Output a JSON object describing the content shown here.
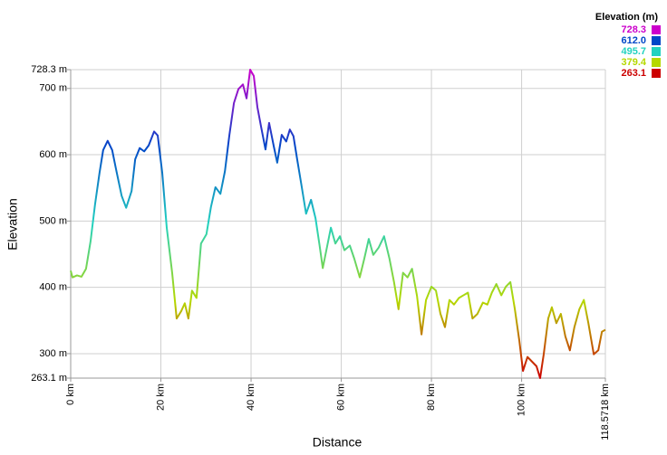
{
  "chart_data": {
    "type": "line",
    "x_label": "Distance",
    "y_label": "Elevation",
    "x": [
      0,
      0.4,
      1.4,
      2.4,
      3.4,
      4.4,
      5.4,
      6.4,
      7.2,
      8.2,
      9.2,
      10,
      11.3,
      12.3,
      13.5,
      14.3,
      15.3,
      16.3,
      17.3,
      18.5,
      19.3,
      20.3,
      21.3,
      22.5,
      23.5,
      24.5,
      25.3,
      26.1,
      26.9,
      27.9,
      28.9,
      30.1,
      31.1,
      32.1,
      33.2,
      34.2,
      35.2,
      36.2,
      37.2,
      38.2,
      39,
      39.8,
      40.6,
      41.4,
      42.2,
      43.2,
      44,
      45,
      45.8,
      46.8,
      47.8,
      48.6,
      49.4,
      50.2,
      51.2,
      52.2,
      53.3,
      54.3,
      55.2,
      55.9,
      56.7,
      57.7,
      58.7,
      59.7,
      60.7,
      61.9,
      62.9,
      64.1,
      65.1,
      66.1,
      67.1,
      68.3,
      69.5,
      70.7,
      71.7,
      72.7,
      73.7,
      74.7,
      75.7,
      76.8,
      77.8,
      78.8,
      80,
      81,
      82,
      83,
      84,
      85,
      86.1,
      87.1,
      88.1,
      89.1,
      90.2,
      91.4,
      92.4,
      93.4,
      94.4,
      95.5,
      96.5,
      97.5,
      98.5,
      99.5,
      100.3,
      101.3,
      102.3,
      103.3,
      104.1,
      104.9,
      105.9,
      106.7,
      107.7,
      108.7,
      109.7,
      110.7,
      111.7,
      112.8,
      113.8,
      114.8,
      116,
      117,
      117.8,
      118.5718
    ],
    "values": [
      425,
      415,
      418,
      416,
      428,
      469,
      525,
      573,
      607,
      621,
      607,
      580,
      538,
      520,
      545,
      593,
      610,
      605,
      614,
      635,
      629,
      573,
      490,
      422,
      353,
      364,
      376,
      353,
      395,
      384,
      466,
      480,
      521,
      551,
      541,
      575,
      630,
      678,
      699,
      706,
      685,
      728.3,
      719,
      672,
      643,
      608,
      648,
      614,
      588,
      630,
      620,
      638,
      628,
      594,
      553,
      511,
      532,
      504,
      463,
      429,
      456,
      490,
      466,
      477,
      456,
      463,
      443,
      415,
      443,
      473,
      449,
      460,
      477,
      443,
      408,
      367,
      422,
      415,
      428,
      387,
      329,
      381,
      401,
      395,
      360,
      340,
      381,
      374,
      384,
      388,
      392,
      353,
      360,
      377,
      374,
      392,
      405,
      388,
      401,
      408,
      367,
      319,
      274,
      295,
      288,
      281,
      263.1,
      299,
      353,
      370,
      346,
      360,
      326,
      305,
      340,
      367,
      381,
      346,
      299,
      305,
      333,
      336
    ],
    "xlim": [
      0,
      118.5718
    ],
    "ylim": [
      263.1,
      728.3
    ],
    "xticks": [
      {
        "value": 0,
        "label": "0 km"
      },
      {
        "value": 20,
        "label": "20 km"
      },
      {
        "value": 40,
        "label": "40 km"
      },
      {
        "value": 60,
        "label": "60 km"
      },
      {
        "value": 80,
        "label": "80 km"
      },
      {
        "value": 100,
        "label": "100 km"
      },
      {
        "value": 118.5718,
        "label": "118.5718 km"
      }
    ],
    "yticks": [
      {
        "value": 263.1,
        "label": "263.1 m"
      },
      {
        "value": 300,
        "label": "300 m"
      },
      {
        "value": 400,
        "label": "400 m"
      },
      {
        "value": 500,
        "label": "500 m"
      },
      {
        "value": 600,
        "label": "600 m"
      },
      {
        "value": 700,
        "label": "700 m"
      },
      {
        "value": 728.3,
        "label": "728.3 m"
      }
    ],
    "grid": true,
    "legend": {
      "title": "Elevation (m)",
      "position": "top-right",
      "entries": [
        {
          "value": 728.3,
          "color": "#cc00cc"
        },
        {
          "value": 612,
          "label": "612.0",
          "color": "#0047c8"
        },
        {
          "value": 495.7,
          "color": "#22d2c0"
        },
        {
          "value": 379.4,
          "color": "#b5d800"
        },
        {
          "value": 263.1,
          "color": "#cc0000"
        }
      ]
    }
  }
}
